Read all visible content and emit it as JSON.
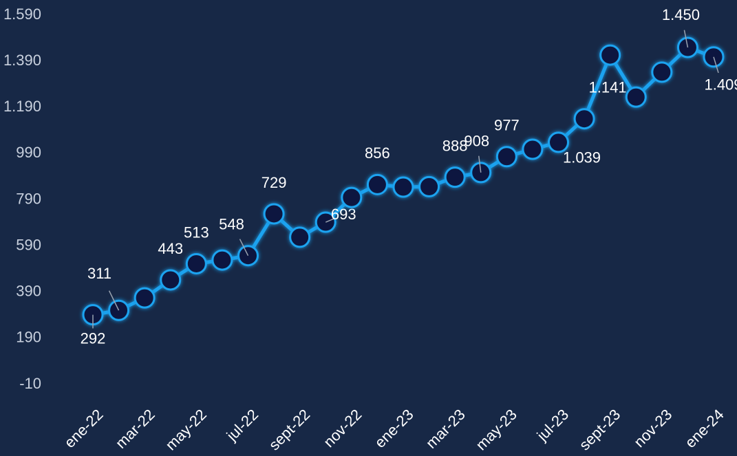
{
  "chart_data": {
    "type": "line",
    "categories": [
      "ene-22",
      null,
      "mar-22",
      null,
      "may-22",
      null,
      "jul-22",
      null,
      "sept-22",
      null,
      "nov-22",
      null,
      "ene-23",
      null,
      "mar-23",
      null,
      "may-23",
      null,
      "jul-23",
      null,
      "sept-23",
      null,
      "nov-23",
      null,
      "ene-24"
    ],
    "series": [
      {
        "color": "#1fa3f0",
        "values": [
          292,
          311,
          365,
          443,
          513,
          529,
          548,
          729,
          628,
          693,
          800,
          856,
          845,
          847,
          888,
          908,
          977,
          1009,
          1039,
          1141,
          1417,
          1235,
          1343,
          1450,
          1409
        ],
        "value_labels": [
          null,
          null,
          null,
          null,
          null,
          null,
          null,
          null,
          null,
          null,
          null,
          null,
          null,
          null,
          null,
          null,
          null,
          null,
          "1.039",
          "1.141",
          null,
          null,
          null,
          "1.450",
          "1.409"
        ]
      }
    ],
    "ylim": [
      -10,
      1590
    ],
    "yticks": [
      -10,
      190,
      390,
      590,
      790,
      990,
      {
        "value": 1190,
        "label": "1.190"
      },
      {
        "value": 1390,
        "label": "1.390"
      },
      {
        "value": 1590,
        "label": "1.590"
      }
    ],
    "grid": false
  }
}
